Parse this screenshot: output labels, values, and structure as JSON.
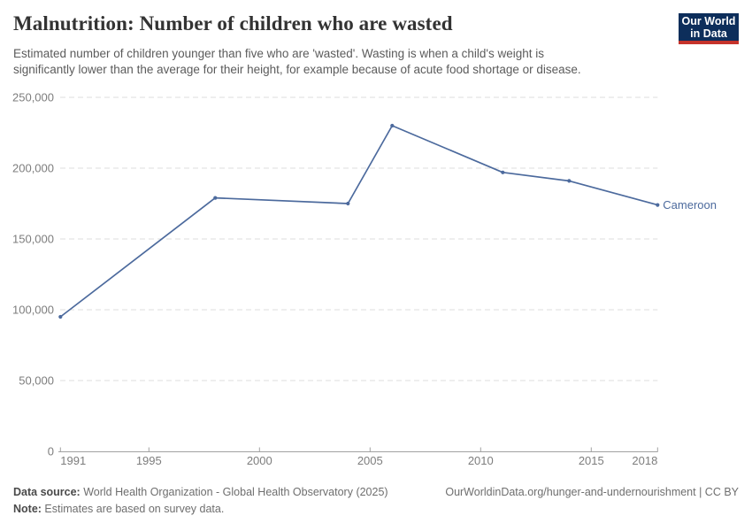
{
  "header": {
    "title": "Malnutrition: Number of children who are wasted",
    "subtitle": "Estimated number of children younger than five who are 'wasted'. Wasting is when a child's weight is\nsignificantly lower than the average for their height, for example because of acute food shortage or disease.",
    "logo": {
      "line1": "Our World",
      "line2": "in Data",
      "bg_color": "#0d2e5b",
      "accent_color": "#c5332b"
    }
  },
  "chart_data": {
    "type": "line",
    "title": "Malnutrition: Number of children who are wasted",
    "xlabel": "",
    "ylabel": "",
    "xlim": [
      1991,
      2018
    ],
    "ylim": [
      0,
      250000
    ],
    "x_ticks": [
      1991,
      1995,
      2000,
      2005,
      2010,
      2015,
      2018
    ],
    "y_ticks": [
      0,
      50000,
      100000,
      150000,
      200000,
      250000
    ],
    "grid": "horizontal-dashed",
    "legend": "end-of-line-label",
    "series": [
      {
        "name": "Cameroon",
        "color": "#4c6a9d",
        "x": [
          1991,
          1998,
          2004,
          2006,
          2011,
          2014,
          2018
        ],
        "values": [
          95000,
          179000,
          175000,
          230000,
          197000,
          191000,
          174000
        ]
      }
    ]
  },
  "footer": {
    "datasource_label": "Data source:",
    "datasource_text": " World Health Organization - Global Health Observatory (2025)",
    "link": "OurWorldinData.org/hunger-and-undernourishment | CC BY",
    "note_label": "Note:",
    "note_text": " Estimates are based on survey data."
  }
}
